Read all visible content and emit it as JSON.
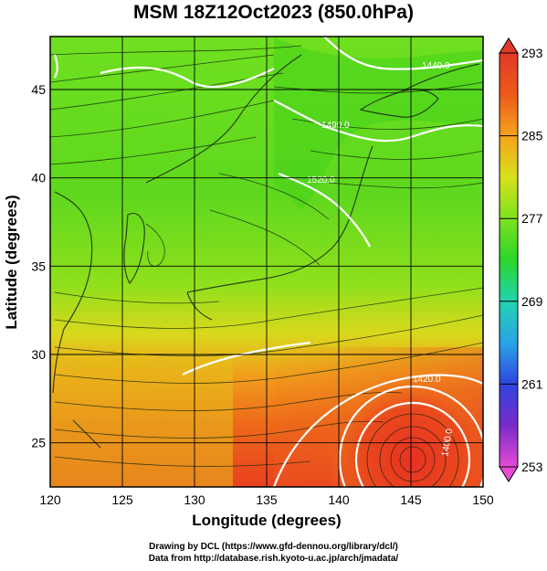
{
  "title": "MSM 18Z12Oct2023 (850.0hPa)",
  "map": {
    "lon_range": [
      120,
      150
    ],
    "lat_range": [
      22.5,
      48
    ],
    "xlabel": "Longitude (degrees)",
    "ylabel": "Latitude  (degrees)",
    "x_ticks": [
      120,
      125,
      130,
      135,
      140,
      145,
      150
    ],
    "y_ticks": [
      25,
      30,
      35,
      40,
      45
    ],
    "grid": true,
    "field": "temperature (K)",
    "overlay": "streamlines",
    "contour_labels": [
      "1440.0",
      "1490.0",
      "1520.0",
      "1420.0",
      "1400.0"
    ]
  },
  "colorbar": {
    "min": 253,
    "max": 293,
    "ticks": [
      253,
      261,
      269,
      277,
      285,
      293
    ],
    "colors": [
      "#e64bd6",
      "#7a2bc9",
      "#2f45e0",
      "#2aa3e6",
      "#22d4b0",
      "#2ad62a",
      "#7ee21e",
      "#d8e01c",
      "#f5a21c",
      "#ee5a1a",
      "#e03a28"
    ]
  },
  "credits": {
    "line1": "Drawing by DCL (https://www.gfd-dennou.org/library/dcl/)",
    "line2": "Data from http://database.rish.kyoto-u.ac.jp/arch/jmadata/"
  }
}
